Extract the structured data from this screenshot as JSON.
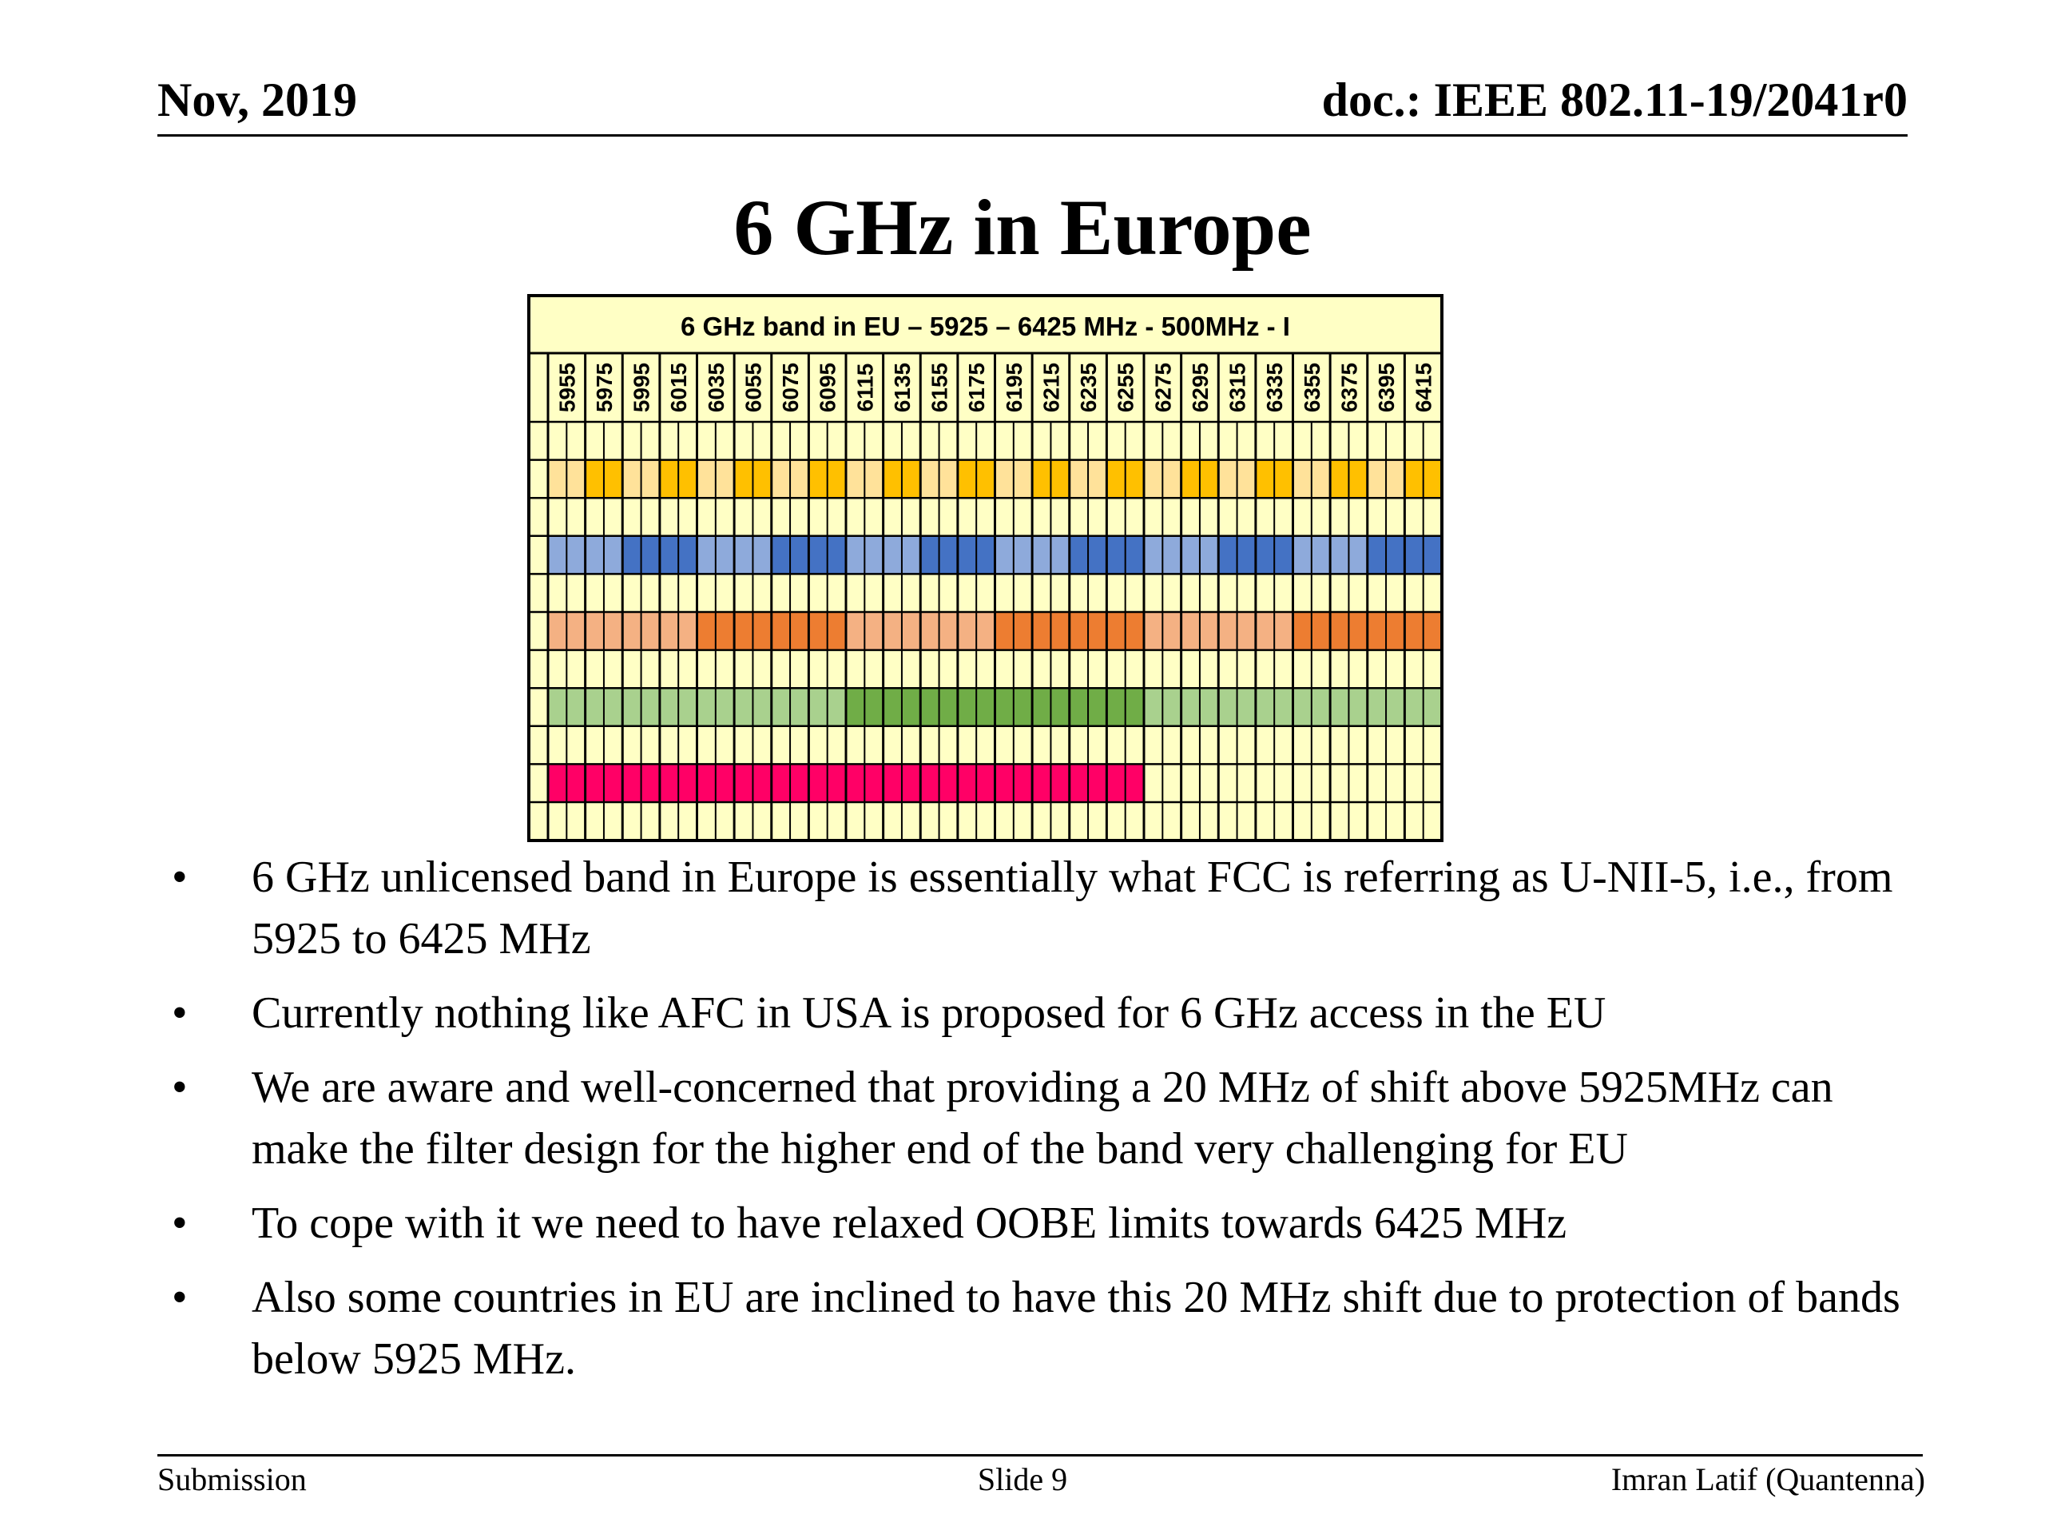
{
  "header": {
    "date": "Nov, 2019",
    "doc_id": "doc.: IEEE 802.11-19/2041r0"
  },
  "slide_title": "6 GHz in Europe",
  "band_chart": {
    "title": "6 GHz band in EU – 5925 – 6425 MHz - 500MHz - I",
    "channel_freqs": [
      "5955",
      "5975",
      "5995",
      "6015",
      "6035",
      "6055",
      "6075",
      "6095",
      "6115",
      "6135",
      "6155",
      "6175",
      "6195",
      "6215",
      "6235",
      "6255",
      "6275",
      "6295",
      "6315",
      "6335",
      "6355",
      "6375",
      "6395",
      "6415"
    ],
    "colors": {
      "background": "#ffffc5",
      "grid": "#000000",
      "c20_light": "#ffe29a",
      "c20_dark": "#ffc000",
      "c40_light": "#8eaadb",
      "c40_dark": "#4472c4",
      "c80_light": "#f4b183",
      "c80_dark": "#ed7d31",
      "c160_light": "#a9d18e",
      "c160_dark": "#70ad47",
      "c320": "#ff0066"
    },
    "channel_rows": [
      {
        "width_mhz": 20,
        "num_channels": 24
      },
      {
        "width_mhz": 40,
        "num_channels": 12
      },
      {
        "width_mhz": 80,
        "num_channels": 6
      },
      {
        "width_mhz": 160,
        "num_channels": 3
      },
      {
        "width_mhz": 320,
        "num_channels": 1
      }
    ]
  },
  "bullets": [
    "6 GHz unlicensed band in Europe is essentially what FCC is referring as U-NII-5, i.e., from 5925 to 6425 MHz",
    "Currently nothing like AFC in USA is proposed for 6 GHz access in the EU",
    "We are aware and well-concerned that providing a 20 MHz of shift above 5925MHz can make the filter design for the higher end of the band very challenging for EU",
    "To cope with it we need to have relaxed OOBE limits towards 6425 MHz",
    "Also some countries in EU are inclined to have this 20 MHz shift due to protection of bands below 5925 MHz."
  ],
  "bullet_symbol": "•",
  "footer": {
    "left": "Submission",
    "center": "Slide 9",
    "right": "Imran Latif (Quantenna)"
  }
}
